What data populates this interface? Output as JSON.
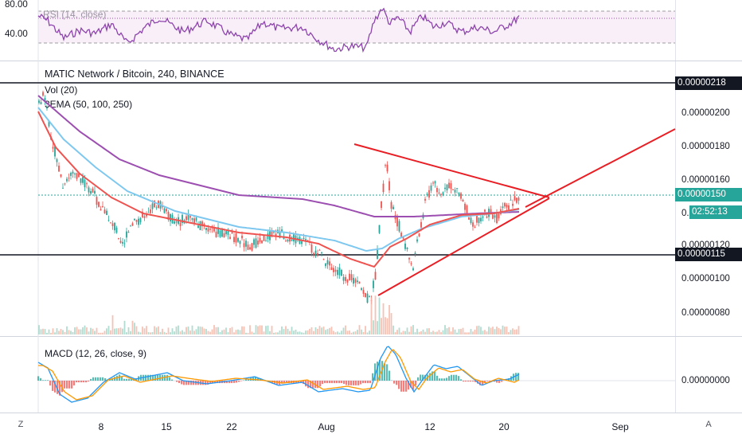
{
  "rsi": {
    "label": "RSI (14, close)",
    "ticks": [
      "80.00",
      "40.00"
    ]
  },
  "main": {
    "title": "MATIC Network / Bitcoin, 240, BINANCE",
    "indicators": [
      "Vol (20)",
      "3EMA (50, 100, 250)"
    ],
    "price_ticks": [
      "0.00000200",
      "0.00000180",
      "0.00000160",
      "0.00000100",
      "0.00000080"
    ],
    "partial_ticks": [
      "0.",
      "0.00000120"
    ],
    "badges": {
      "resistance": "0.00000218",
      "current": "0.00000150",
      "countdown": "02:52:13",
      "support": "0.00000115"
    }
  },
  "macd": {
    "label": "MACD (12, 26, close, 9)",
    "tick": "0.00000000"
  },
  "time_axis": [
    "8",
    "15",
    "22",
    "Aug",
    "12",
    "20",
    "Sep"
  ],
  "corner_buttons": {
    "left": "Z",
    "right": "A"
  },
  "colors": {
    "up": "#26a69a",
    "down": "#ef5350",
    "ema50": "#ef5350",
    "ema100": "#7ec8ef",
    "ema250": "#9c4fb0",
    "rsi": "#8e44ad",
    "trend": "#e91e24",
    "current": "#26a69a"
  }
}
